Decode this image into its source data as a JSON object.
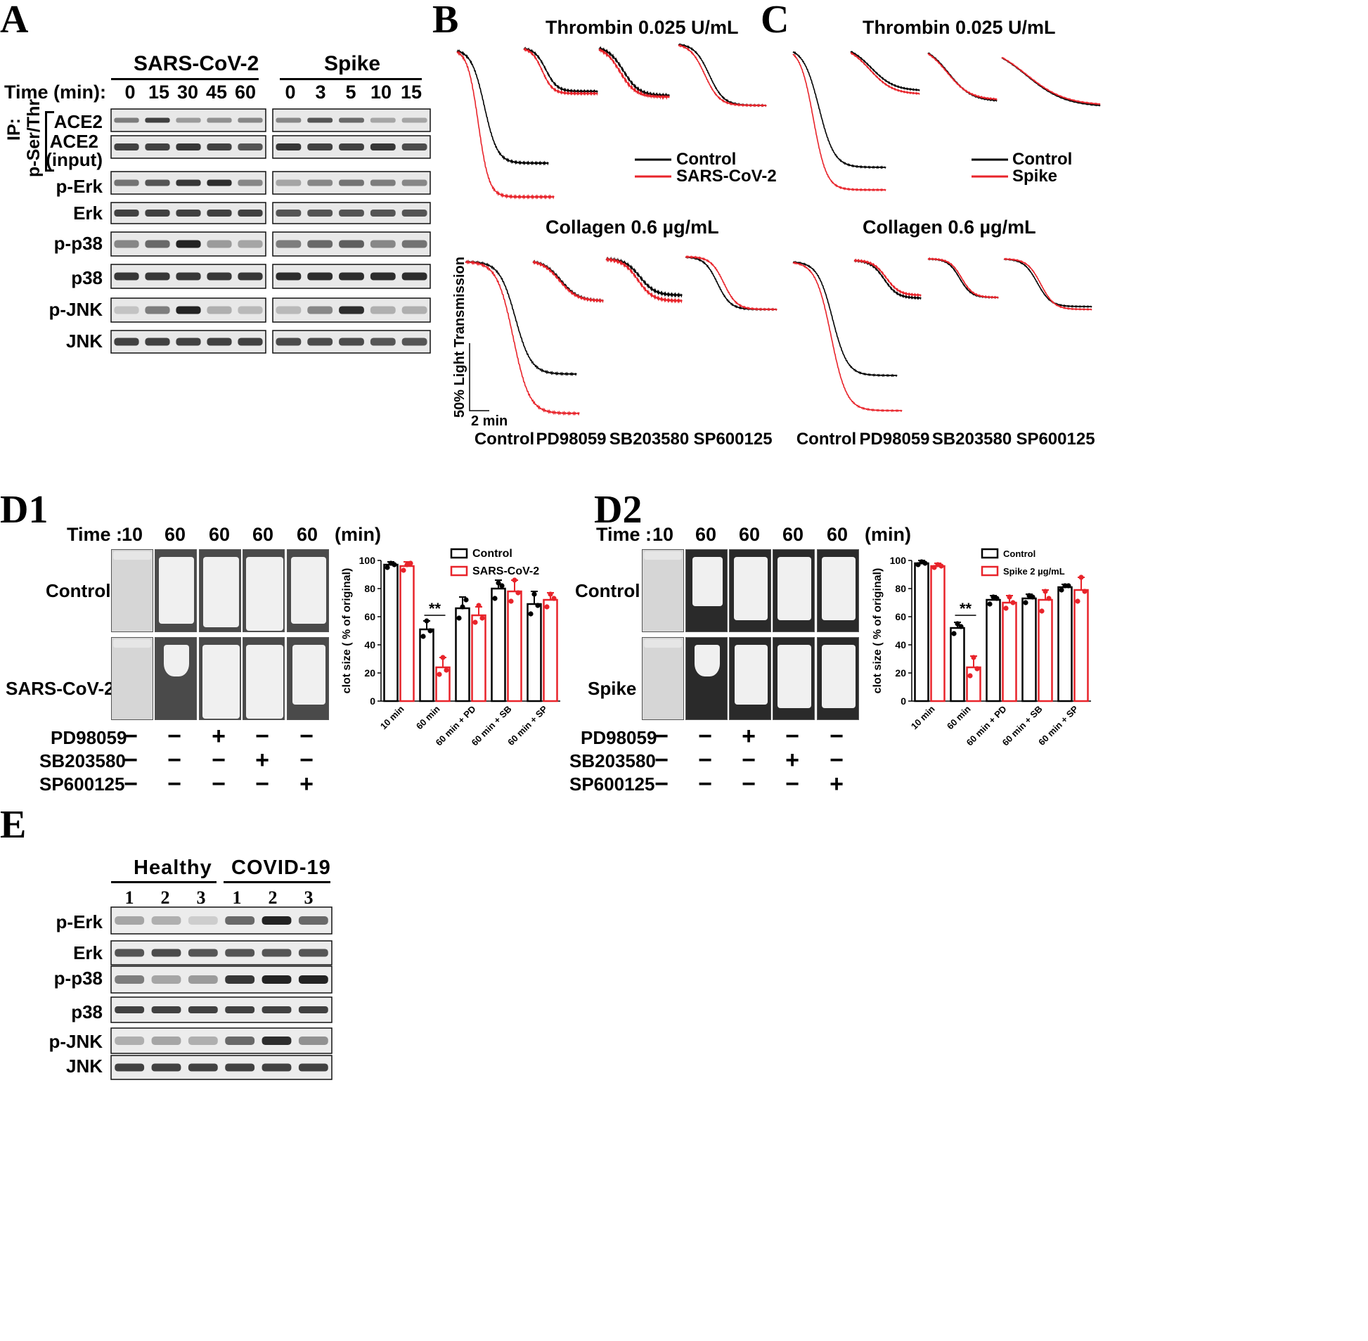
{
  "panel_labels": {
    "A": "A",
    "B": "B",
    "C": "C",
    "D1": "D1",
    "D2": "D2",
    "E": "E"
  },
  "panelA": {
    "group1": "SARS-CoV-2",
    "group2": "Spike",
    "time_label": "Time (min):",
    "times1": [
      "0",
      "15",
      "30",
      "45",
      "60"
    ],
    "times2": [
      "0",
      "3",
      "5",
      "10",
      "15"
    ],
    "ip_label": "IP:",
    "ip_target": "p-Ser/Thr",
    "rows": [
      "ACE2",
      "ACE2",
      "(input)",
      "p-Erk",
      "Erk",
      "p-p38",
      "p38",
      "p-JNK",
      "JNK"
    ],
    "band_intensity": {
      "ace2_ip": [
        [
          0.5,
          0.8,
          0.35,
          0.4,
          0.45
        ],
        [
          0.45,
          0.7,
          0.6,
          0.3,
          0.3
        ]
      ],
      "ace2_in": [
        [
          0.8,
          0.8,
          0.85,
          0.8,
          0.7
        ],
        [
          0.85,
          0.8,
          0.8,
          0.85,
          0.75
        ]
      ],
      "perk": [
        [
          0.55,
          0.7,
          0.85,
          0.9,
          0.45
        ],
        [
          0.3,
          0.45,
          0.55,
          0.5,
          0.45
        ]
      ],
      "erk": [
        [
          0.8,
          0.8,
          0.8,
          0.8,
          0.8
        ],
        [
          0.7,
          0.7,
          0.7,
          0.7,
          0.7
        ]
      ],
      "pp38": [
        [
          0.45,
          0.6,
          0.95,
          0.35,
          0.3
        ],
        [
          0.5,
          0.6,
          0.65,
          0.45,
          0.55
        ]
      ],
      "p38": [
        [
          0.85,
          0.85,
          0.85,
          0.85,
          0.85
        ],
        [
          0.9,
          0.9,
          0.9,
          0.9,
          0.9
        ]
      ],
      "pjnk": [
        [
          0.15,
          0.5,
          0.95,
          0.25,
          0.2
        ],
        [
          0.2,
          0.45,
          0.9,
          0.25,
          0.25
        ]
      ],
      "jnk": [
        [
          0.8,
          0.8,
          0.8,
          0.8,
          0.8
        ],
        [
          0.75,
          0.75,
          0.75,
          0.7,
          0.7
        ]
      ]
    }
  },
  "panelB": {
    "title_top": "Thrombin 0.025 U/mL",
    "title_bottom": "Collagen 0.6 µg/mL",
    "legend": [
      {
        "name": "Control",
        "color": "#000000"
      },
      {
        "name": "SARS-CoV-2",
        "color": "#e8232a"
      }
    ],
    "scale_y": "50% Light Transmission",
    "scale_x": "2 min",
    "conditions": [
      "Control",
      "PD98059",
      "SB203580",
      "SP600125"
    ]
  },
  "panelC": {
    "title_top": "Thrombin 0.025 U/mL",
    "title_bottom": "Collagen 0.6 µg/mL",
    "legend": [
      {
        "name": "Control",
        "color": "#000000"
      },
      {
        "name": "Spike",
        "color": "#e8232a"
      }
    ],
    "conditions": [
      "Control",
      "PD98059",
      "SB203580",
      "SP600125"
    ]
  },
  "panelD1": {
    "time_label": "Time :",
    "times": [
      "10",
      "60",
      "60",
      "60",
      "60"
    ],
    "unit": "(min)",
    "row_labels": [
      "Control",
      "SARS-CoV-2"
    ],
    "inhibitors": [
      "PD98059",
      "SB203580",
      "SP600125"
    ],
    "signs": [
      [
        "−",
        "−",
        "+",
        "−",
        "−"
      ],
      [
        "−",
        "−",
        "−",
        "+",
        "−"
      ],
      [
        "−",
        "−",
        "−",
        "−",
        "+"
      ]
    ],
    "clot_fraction": [
      [
        0,
        0.85,
        0.9,
        0.95,
        0.85
      ],
      [
        0,
        0.35,
        0.95,
        0.95,
        0.75
      ]
    ]
  },
  "panelD2": {
    "time_label": "Time :",
    "times": [
      "10",
      "60",
      "60",
      "60",
      "60"
    ],
    "unit": "(min)",
    "row_labels": [
      "Control",
      "Spike"
    ],
    "inhibitors": [
      "PD98059",
      "SB203580",
      "SP600125"
    ],
    "signs": [
      [
        "−",
        "−",
        "+",
        "−",
        "−"
      ],
      [
        "−",
        "−",
        "−",
        "+",
        "−"
      ],
      [
        "−",
        "−",
        "−",
        "−",
        "+"
      ]
    ],
    "clot_fraction": [
      [
        0,
        0.6,
        0.8,
        0.8,
        0.8
      ],
      [
        0,
        0.35,
        0.75,
        0.8,
        0.8
      ]
    ]
  },
  "panelE": {
    "group1": "Healthy",
    "group2": "COVID-19",
    "lanes": [
      "1",
      "2",
      "3",
      "1",
      "2",
      "3"
    ],
    "rows": [
      "p-Erk",
      "Erk",
      "p-p38",
      "p38",
      "p-JNK",
      "JNK"
    ],
    "band_intensity": {
      "perk": [
        0.3,
        0.25,
        0.1,
        0.6,
        0.95,
        0.6
      ],
      "erk": [
        0.7,
        0.75,
        0.7,
        0.7,
        0.7,
        0.7
      ],
      "pp38": [
        0.5,
        0.3,
        0.35,
        0.85,
        0.95,
        0.95
      ],
      "p38": [
        0.8,
        0.8,
        0.8,
        0.8,
        0.8,
        0.8
      ],
      "pjnk": [
        0.25,
        0.3,
        0.25,
        0.6,
        0.9,
        0.4
      ],
      "jnk": [
        0.8,
        0.8,
        0.8,
        0.8,
        0.8,
        0.8
      ]
    }
  },
  "chart_data": [
    {
      "type": "bar",
      "panel": "D1",
      "categories": [
        "10 min",
        "60 min",
        "60 min + PD",
        "60 min + SB",
        "60 min + SP"
      ],
      "ylabel": "clot size ( % of original)",
      "ylim": [
        0,
        100
      ],
      "yticks": [
        "0",
        "20",
        "40",
        "60",
        "80",
        "100"
      ],
      "legend_placement": "top-right",
      "significance": {
        "category": "60 min",
        "label": "**"
      },
      "series": [
        {
          "name": "Control",
          "color": "#000000",
          "values": [
            97,
            51,
            66,
            80,
            69
          ],
          "err": [
            2,
            6,
            8,
            6,
            9
          ],
          "points": [
            [
              95,
              98,
              97
            ],
            [
              46,
              57,
              50
            ],
            [
              59,
              67,
              72
            ],
            [
              73,
              84,
              82
            ],
            [
              62,
              76,
              68
            ]
          ]
        },
        {
          "name": "SARS-CoV-2",
          "color": "#e8232a",
          "values": [
            96,
            24,
            61,
            78,
            72
          ],
          "err": [
            3,
            7,
            6,
            8,
            5
          ],
          "points": [
            [
              93,
              97,
              98
            ],
            [
              19,
              31,
              22
            ],
            [
              56,
              68,
              59
            ],
            [
              71,
              86,
              77
            ],
            [
              67,
              76,
              73
            ]
          ]
        }
      ]
    },
    {
      "type": "bar",
      "panel": "D2",
      "categories": [
        "10 min",
        "60 min",
        "60 min + PD",
        "60 min + SB",
        "60 min + SP"
      ],
      "ylabel": "clot size ( % of original)",
      "ylim": [
        0,
        100
      ],
      "yticks": [
        "0",
        "20",
        "40",
        "60",
        "80",
        "100"
      ],
      "legend_placement": "top-right",
      "significance": {
        "category": "60 min",
        "label": "**"
      },
      "series": [
        {
          "name": "Control",
          "color": "#000000",
          "values": [
            98,
            52,
            72,
            73,
            81
          ],
          "err": [
            2,
            4,
            3,
            3,
            2
          ],
          "points": [
            [
              97,
              99,
              98
            ],
            [
              48,
              55,
              53
            ],
            [
              69,
              74,
              73
            ],
            [
              70,
              75,
              74
            ],
            [
              79,
              82,
              82
            ]
          ]
        },
        {
          "name": "Spike 2 µg/mL",
          "color": "#e8232a",
          "values": [
            96,
            24,
            70,
            72,
            79
          ],
          "err": [
            2,
            8,
            5,
            7,
            9
          ],
          "points": [
            [
              95,
              97,
              96
            ],
            [
              18,
              31,
              23
            ],
            [
              66,
              74,
              70
            ],
            [
              64,
              78,
              73
            ],
            [
              71,
              88,
              78
            ]
          ]
        }
      ]
    }
  ]
}
